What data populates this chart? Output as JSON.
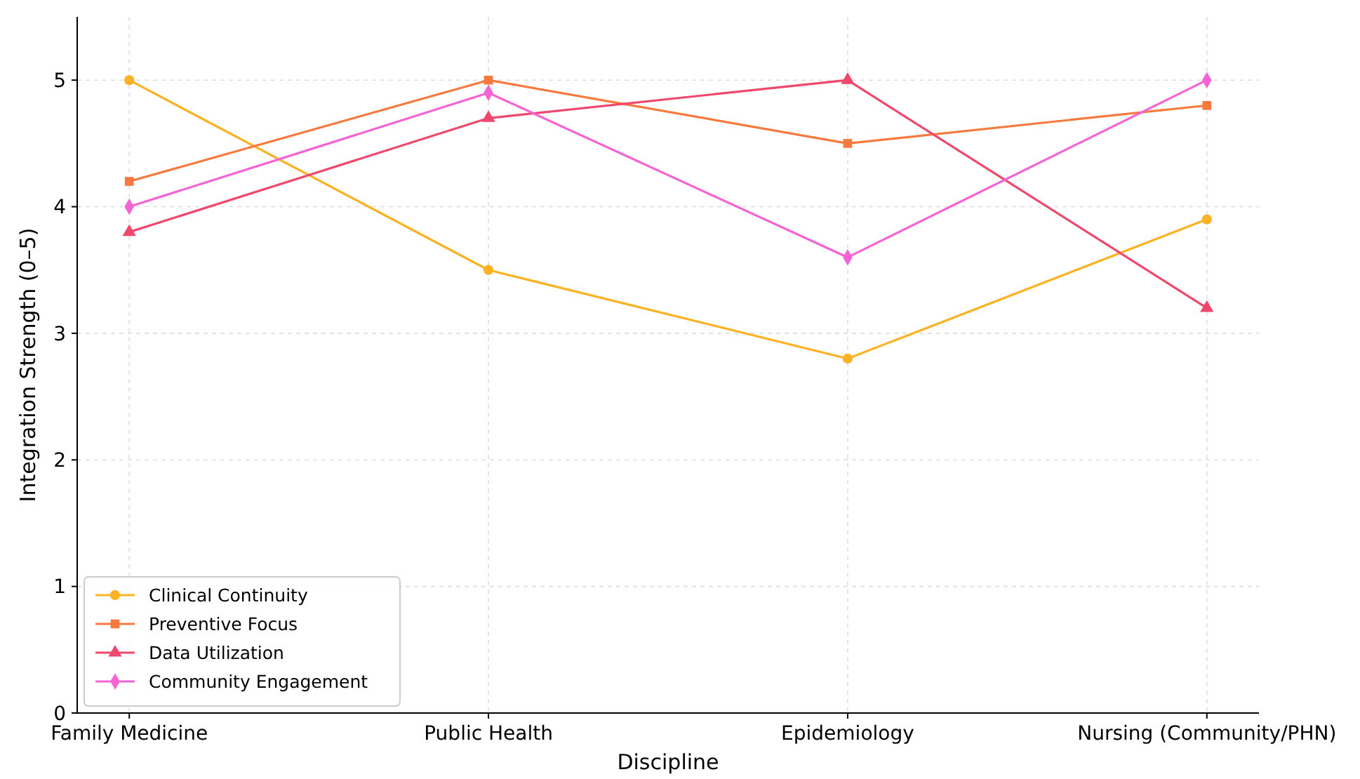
{
  "chart_data": {
    "type": "line",
    "xlabel": "Discipline",
    "ylabel": "Integration Strength (0–5)",
    "categories": [
      "Family Medicine",
      "Public Health",
      "Epidemiology",
      "Nursing (Community/PHN)"
    ],
    "series": [
      {
        "name": "Clinical Continuity",
        "color": "#fbb224",
        "marker": "circle",
        "values": [
          5.0,
          3.5,
          2.8,
          3.9
        ]
      },
      {
        "name": "Preventive Focus",
        "color": "#f7793e",
        "marker": "square",
        "values": [
          4.2,
          5.0,
          4.5,
          4.8
        ]
      },
      {
        "name": "Data Utilization",
        "color": "#f0476c",
        "marker": "triangle",
        "values": [
          3.8,
          4.7,
          5.0,
          3.2
        ]
      },
      {
        "name": "Community Engagement",
        "color": "#f563d4",
        "marker": "diamond",
        "values": [
          4.0,
          4.9,
          3.6,
          5.0
        ]
      }
    ],
    "ylim": [
      0,
      5.5
    ],
    "yticks": [
      0,
      1,
      2,
      3,
      4,
      5
    ],
    "grid": true,
    "legend": "bottom left",
    "line_style": "solid"
  }
}
